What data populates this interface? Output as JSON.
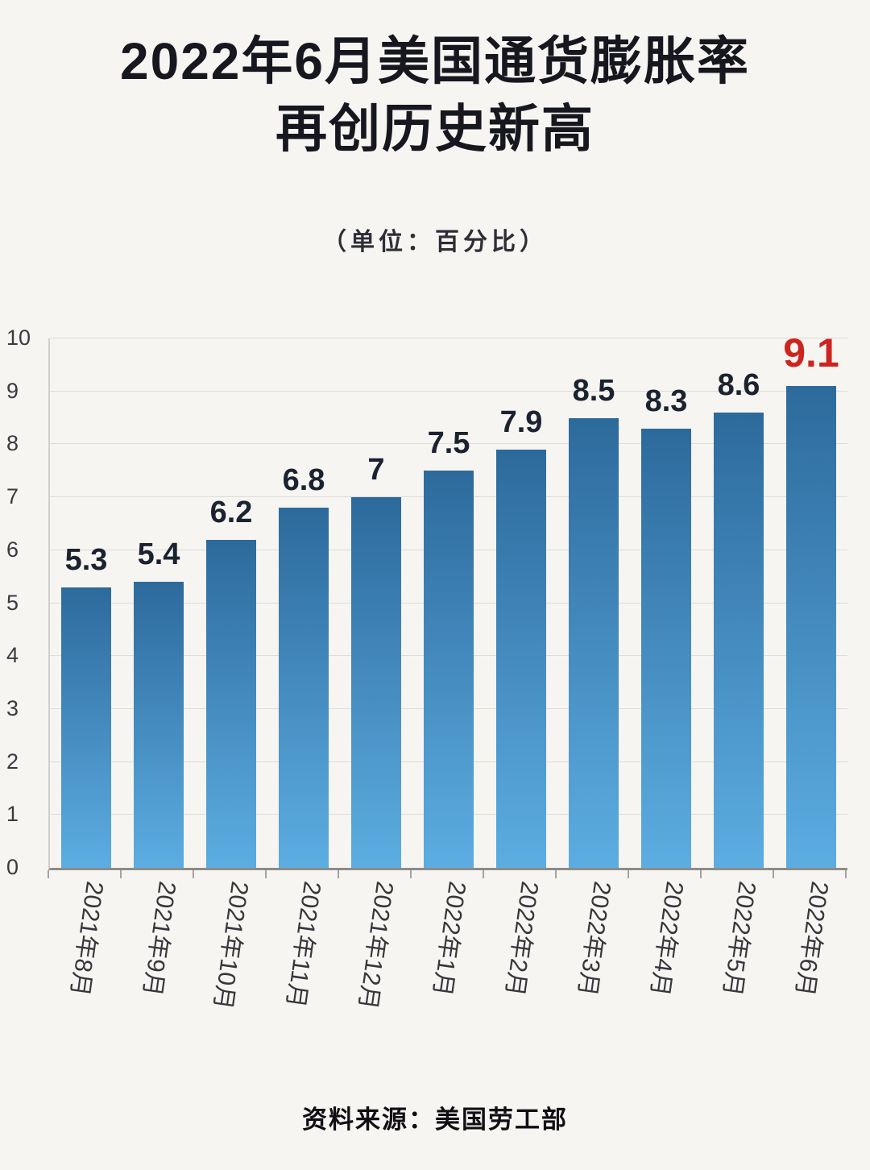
{
  "page": {
    "background": "#f7f5f1"
  },
  "header": {
    "title_line1": "2022年6月美国通货膨胀率",
    "title_line2": "再创历史新高",
    "subtitle": "（单位：百分比）"
  },
  "footer": {
    "source": "资料来源：美国劳工部"
  },
  "chart_data": {
    "type": "bar",
    "title": "2022年6月美国通货膨胀率再创历史新高",
    "unit_note": "（单位：百分比）",
    "categories": [
      "2021年8月",
      "2021年9月",
      "2021年10月",
      "2021年11月",
      "2021年12月",
      "2022年1月",
      "2022年2月",
      "2022年3月",
      "2022年4月",
      "2022年5月",
      "2022年6月"
    ],
    "values": [
      5.3,
      5.4,
      6.2,
      6.8,
      7,
      7.5,
      7.9,
      8.5,
      8.3,
      8.6,
      9.1
    ],
    "value_labels": [
      "5.3",
      "5.4",
      "6.2",
      "6.8",
      "7",
      "7.5",
      "7.9",
      "8.5",
      "8.3",
      "8.6",
      "9.1"
    ],
    "highlight_index": 10,
    "highlight_color": "#cd241f",
    "bar_color_top": "#2d6a9c",
    "bar_color_bottom": "#5cade2",
    "value_label_color": "#1b2230",
    "ylim": [
      0,
      10
    ],
    "yticks": [
      0,
      1,
      2,
      3,
      4,
      5,
      6,
      7,
      8,
      9,
      10
    ],
    "grid": true,
    "legend": "none",
    "source": "资料来源：美国劳工部"
  }
}
